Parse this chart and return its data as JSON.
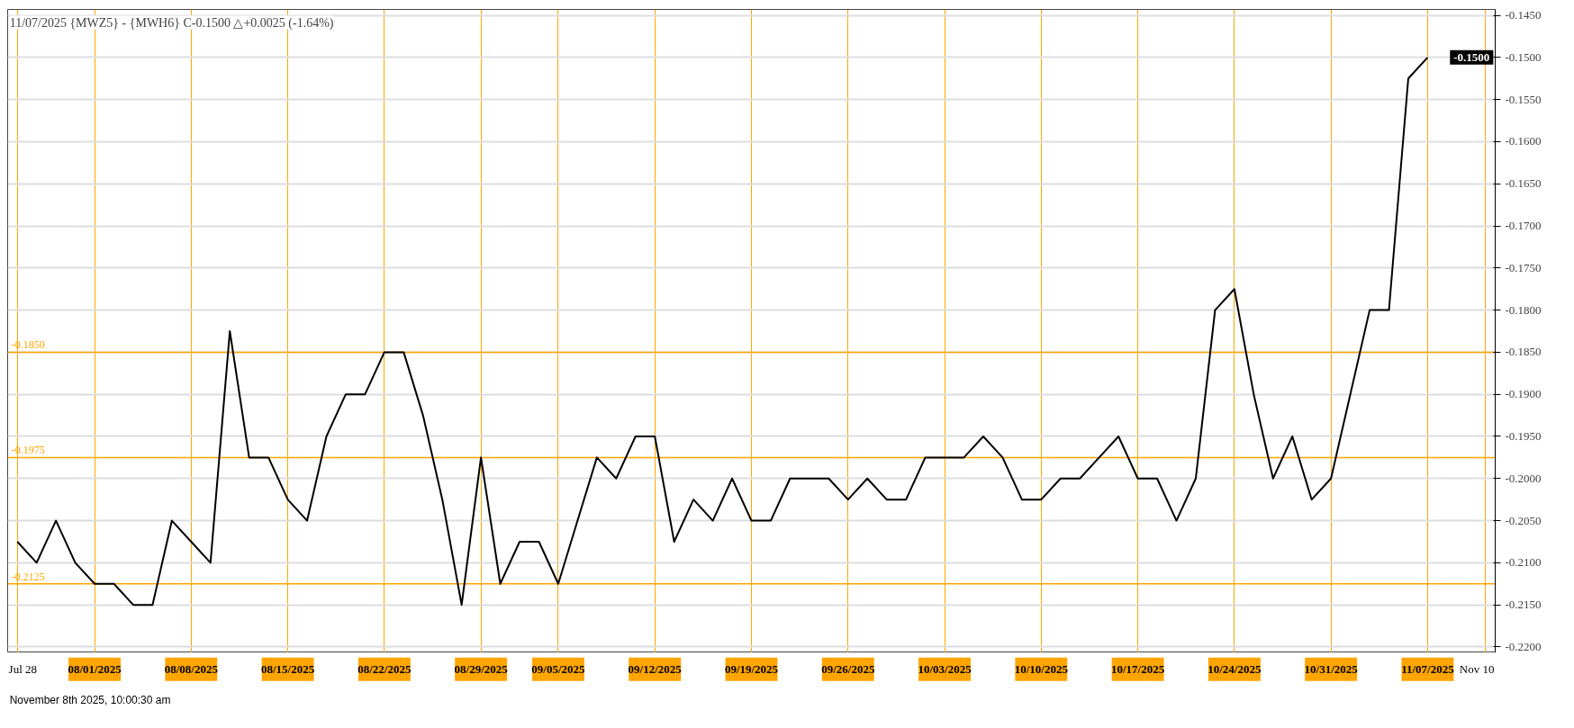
{
  "chart_data": {
    "type": "line",
    "title": "11/07/2025 {MWZ5} - {MWH6} C-0.1500 △+0.0025 (-1.64%)",
    "categories": [
      "Jul 28",
      null,
      null,
      null,
      "08/01/2025",
      null,
      null,
      null,
      null,
      "08/08/2025",
      null,
      null,
      null,
      null,
      "08/15/2025",
      null,
      null,
      null,
      null,
      "08/22/2025",
      null,
      null,
      null,
      null,
      "08/29/2025",
      null,
      null,
      null,
      "09/05/2025",
      null,
      null,
      null,
      null,
      "09/12/2025",
      null,
      null,
      null,
      null,
      "09/19/2025",
      null,
      null,
      null,
      null,
      "09/26/2025",
      null,
      null,
      null,
      null,
      "10/03/2025",
      null,
      null,
      null,
      null,
      "10/10/2025",
      null,
      null,
      null,
      null,
      "10/17/2025",
      null,
      null,
      null,
      null,
      "10/24/2025",
      null,
      null,
      null,
      null,
      "10/31/2025",
      null,
      null,
      null,
      null,
      "11/07/2025",
      null,
      null,
      "Nov 10"
    ],
    "series": [
      {
        "color": "#000000",
        "values": [
          -0.2075,
          -0.21,
          -0.205,
          -0.21,
          -0.2125,
          -0.2125,
          -0.215,
          -0.215,
          -0.205,
          -0.2075,
          -0.21,
          -0.1825,
          -0.1975,
          -0.1975,
          -0.2025,
          -0.205,
          -0.195,
          -0.19,
          -0.19,
          -0.185,
          -0.185,
          -0.1925,
          -0.2025,
          -0.215,
          -0.1975,
          -0.2125,
          -0.2075,
          -0.2075,
          -0.2125,
          -0.205,
          -0.1975,
          -0.2,
          -0.195,
          -0.195,
          -0.2075,
          -0.2025,
          -0.205,
          -0.2,
          -0.205,
          -0.205,
          -0.2,
          -0.2,
          -0.2,
          -0.2025,
          -0.2,
          -0.2025,
          -0.2025,
          -0.1975,
          -0.1975,
          -0.1975,
          -0.195,
          -0.1975,
          -0.2025,
          -0.2025,
          -0.2,
          -0.2,
          -0.1975,
          -0.195,
          -0.2,
          -0.2,
          -0.205,
          -0.2,
          -0.18,
          -0.1775,
          -0.19,
          -0.2,
          -0.195,
          -0.2025,
          -0.2,
          -0.19,
          -0.18,
          -0.18,
          -0.1525,
          -0.15,
          null,
          null,
          null
        ]
      }
    ],
    "ylim": [
      -0.2207,
      -0.1443
    ],
    "yticks": [
      {
        "value": -0.22,
        "label": "-0.2200"
      },
      {
        "value": -0.215,
        "label": "-0.2150"
      },
      {
        "value": -0.21,
        "label": "-0.2100"
      },
      {
        "value": -0.205,
        "label": "-0.2050"
      },
      {
        "value": -0.2,
        "label": "-0.2000"
      },
      {
        "value": -0.195,
        "label": "-0.1950"
      },
      {
        "value": -0.19,
        "label": "-0.1900"
      },
      {
        "value": -0.185,
        "label": "-0.1850"
      },
      {
        "value": -0.18,
        "label": "-0.1800"
      },
      {
        "value": -0.175,
        "label": "-0.1750"
      },
      {
        "value": -0.17,
        "label": "-0.1700"
      },
      {
        "value": -0.165,
        "label": "-0.1650"
      },
      {
        "value": -0.16,
        "label": "-0.1600"
      },
      {
        "value": -0.155,
        "label": "-0.1550"
      },
      {
        "value": -0.15,
        "label": "-0.1500"
      },
      {
        "value": -0.145,
        "label": "-0.1450"
      }
    ],
    "grid": true,
    "marker": "none",
    "line_style": "solid",
    "ref_lines": [
      {
        "axis": "y",
        "value": -0.185,
        "label": "-0.1850",
        "color": "#ffa500"
      },
      {
        "axis": "y",
        "value": -0.1975,
        "label": "-0.1975",
        "color": "#ffa500"
      },
      {
        "axis": "y",
        "value": -0.2125,
        "label": "-0.2125",
        "color": "#ffa500"
      }
    ],
    "annotations": [
      "-0.1500",
      "November 8th 2025, 10:00:30 am"
    ]
  }
}
